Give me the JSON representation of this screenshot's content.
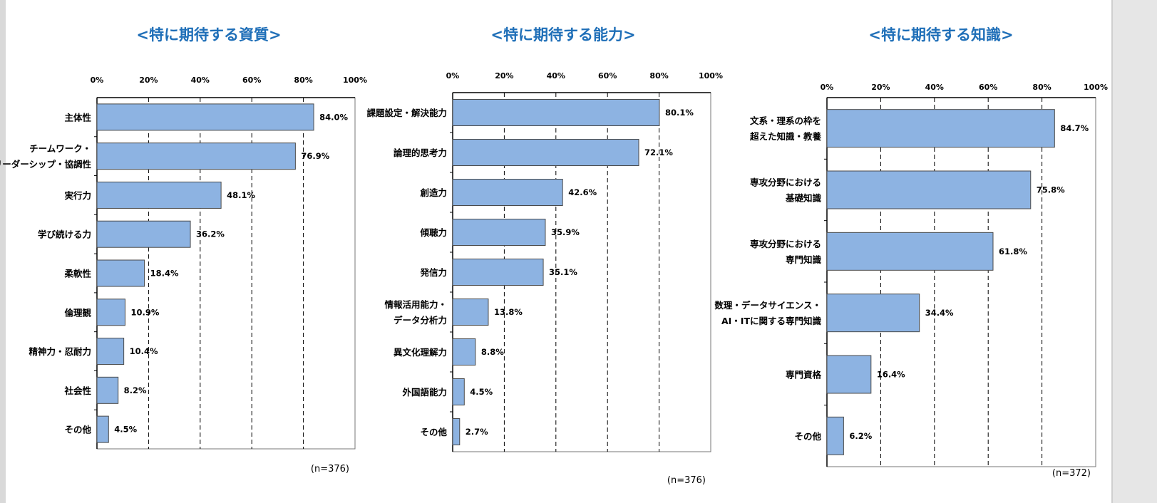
{
  "colors": {
    "bar": "#8db3e2",
    "bar_border": "#4a4a4a",
    "title": "#1f6fb8"
  },
  "chart_data": [
    {
      "type": "bar",
      "orientation": "horizontal",
      "title": "<特に期待する資質>",
      "xlim": [
        0,
        100
      ],
      "ticks": [
        "0%",
        "20%",
        "40%",
        "60%",
        "80%",
        "100%"
      ],
      "grid": "vertical dashed",
      "categories": [
        [
          "主体性"
        ],
        [
          "チームワーク・",
          "リーダーシップ・協調性"
        ],
        [
          "実行力"
        ],
        [
          "学び続ける力"
        ],
        [
          "柔軟性"
        ],
        [
          "倫理観"
        ],
        [
          "精神力・忍耐力"
        ],
        [
          "社会性"
        ],
        [
          "その他"
        ]
      ],
      "values": [
        84.0,
        76.9,
        48.1,
        36.2,
        18.4,
        10.9,
        10.4,
        8.2,
        4.5
      ],
      "value_labels": [
        "84.0%",
        "76.9%",
        "48.1%",
        "36.2%",
        "18.4%",
        "10.9%",
        "10.4%",
        "8.2%",
        "4.5%"
      ],
      "note": "(n=376)"
    },
    {
      "type": "bar",
      "orientation": "horizontal",
      "title": "<特に期待する能力>",
      "xlim": [
        0,
        100
      ],
      "ticks": [
        "0%",
        "20%",
        "40%",
        "60%",
        "80%",
        "100%"
      ],
      "grid": "vertical dashed",
      "categories": [
        [
          "課題設定・解決能力"
        ],
        [
          "論理的思考力"
        ],
        [
          "創造力"
        ],
        [
          "傾聴力"
        ],
        [
          "発信力"
        ],
        [
          "情報活用能力・",
          "データ分析力"
        ],
        [
          "異文化理解力"
        ],
        [
          "外国語能力"
        ],
        [
          "その他"
        ]
      ],
      "values": [
        80.1,
        72.1,
        42.6,
        35.9,
        35.1,
        13.8,
        8.8,
        4.5,
        2.7
      ],
      "value_labels": [
        "80.1%",
        "72.1%",
        "42.6%",
        "35.9%",
        "35.1%",
        "13.8%",
        "8.8%",
        "4.5%",
        "2.7%"
      ],
      "note": "(n=376)"
    },
    {
      "type": "bar",
      "orientation": "horizontal",
      "title": "<特に期待する知識>",
      "xlim": [
        0,
        100
      ],
      "ticks": [
        "0%",
        "20%",
        "40%",
        "60%",
        "80%",
        "100%"
      ],
      "grid": "vertical dashed",
      "categories": [
        [
          "文系・理系の枠を",
          "超えた知識・教養"
        ],
        [
          "専攻分野における",
          "基礎知識"
        ],
        [
          "専攻分野における",
          "専門知識"
        ],
        [
          "数理・データサイエンス・",
          "AI・ITに関する専門知識"
        ],
        [
          "専門資格"
        ],
        [
          "その他"
        ]
      ],
      "values": [
        84.7,
        75.8,
        61.8,
        34.4,
        16.4,
        6.2
      ],
      "value_labels": [
        "84.7%",
        "75.8%",
        "61.8%",
        "34.4%",
        "16.4%",
        "6.2%"
      ],
      "note": "(n=372)"
    }
  ]
}
